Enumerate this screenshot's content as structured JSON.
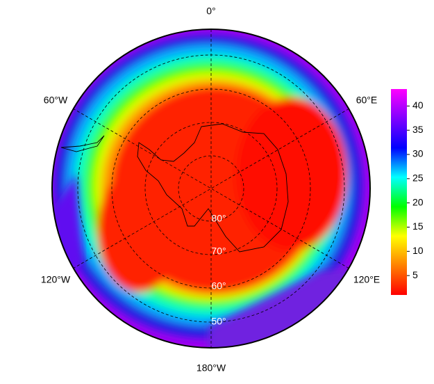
{
  "map": {
    "longitude_labels": [
      "0°",
      "60°E",
      "120°E",
      "180°W",
      "120°W",
      "60°W"
    ],
    "latitude_labels": [
      "80°",
      "70°",
      "60°",
      "50°"
    ],
    "colorbar": {
      "range": [
        1,
        43.5
      ],
      "ticks": [
        5,
        10,
        15,
        20,
        25,
        30,
        35,
        40
      ],
      "colors": [
        "#ff0000",
        "#ff8000",
        "#ffff00",
        "#00ff00",
        "#00ffff",
        "#0000ff",
        "#8000ff",
        "#ff00ff"
      ]
    }
  }
}
